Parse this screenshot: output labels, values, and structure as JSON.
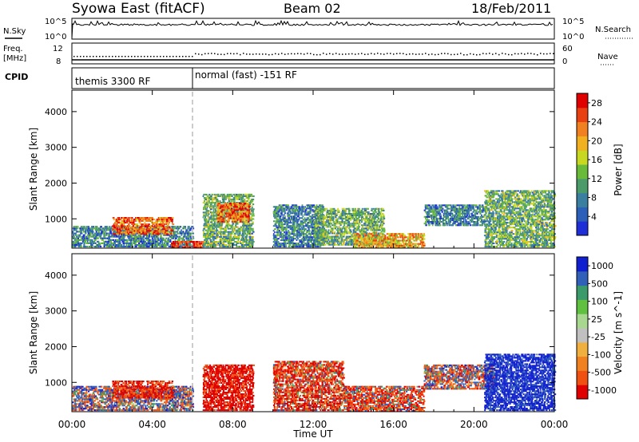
{
  "header": {
    "station": "Syowa East (fitACF)",
    "beam": "Beam 02",
    "date": "18/Feb/2011"
  },
  "top_panels": {
    "nsky": {
      "label": "N.Sky",
      "tick_hi": "10^5",
      "tick_lo": "10^0",
      "right_label": "N.Search",
      "right_tick_hi": "10^5",
      "right_tick_lo": "10^0"
    },
    "freq": {
      "label_1": "Freq.",
      "label_2": "[MHz]",
      "tick_hi": "12",
      "tick_lo": "8",
      "right_label": "Nave",
      "right_tick_hi": "60",
      "right_tick_lo": "0"
    },
    "cpid": {
      "label": "CPID",
      "segments": [
        {
          "name": "themis 3300 RF",
          "start_hour": 0,
          "end_hour": 6.0
        },
        {
          "name": "normal (fast) -151 RF",
          "start_hour": 6.0,
          "end_hour": 24
        }
      ]
    }
  },
  "colors": {
    "grey_marker": "#bbbbbb",
    "power_scale": [
      "#1f2fd8",
      "#2b5fb8",
      "#3a7fa0",
      "#4b9a6a",
      "#6aba3a",
      "#c8d820",
      "#f0b020",
      "#f08020",
      "#e84010",
      "#e00000"
    ],
    "velocity_scale": [
      "#e00000",
      "#f05010",
      "#f08020",
      "#f0b040",
      "#c0c0c0",
      "#a8d890",
      "#60c040",
      "#3a9a6a",
      "#3060b8",
      "#1020d0"
    ]
  },
  "chart_data": [
    {
      "type": "heatmap",
      "title": "",
      "xlabel": "Time UT",
      "ylabel": "Slant Range [km]",
      "xlim": [
        0,
        24
      ],
      "ylim": [
        180,
        4600
      ],
      "x_ticks": [
        "00:00",
        "04:00",
        "08:00",
        "12:00",
        "16:00",
        "20:00",
        "00:00"
      ],
      "y_ticks": [
        "1000",
        "2000",
        "3000",
        "4000"
      ],
      "colorbar": {
        "label": "Power [dB]",
        "ticks": [
          "4",
          "8",
          "12",
          "16",
          "20",
          "24",
          "28"
        ],
        "range": [
          0,
          30
        ]
      },
      "regions": [
        {
          "t0": 0.0,
          "t1": 6.0,
          "r0": 200,
          "r1": 800,
          "value": 8
        },
        {
          "t0": 2.0,
          "t1": 5.0,
          "r0": 550,
          "r1": 1050,
          "value": 24
        },
        {
          "t0": 4.9,
          "t1": 6.5,
          "r0": 180,
          "r1": 380,
          "value": 28
        },
        {
          "t0": 6.5,
          "t1": 9.0,
          "r0": 200,
          "r1": 1700,
          "value": 12
        },
        {
          "t0": 7.2,
          "t1": 8.8,
          "r0": 900,
          "r1": 1450,
          "value": 24
        },
        {
          "t0": 10.0,
          "t1": 12.5,
          "r0": 200,
          "r1": 1400,
          "value": 8
        },
        {
          "t0": 12.0,
          "t1": 15.5,
          "r0": 250,
          "r1": 1300,
          "value": 12
        },
        {
          "t0": 14.0,
          "t1": 17.5,
          "r0": 180,
          "r1": 600,
          "value": 20
        },
        {
          "t0": 17.5,
          "t1": 20.5,
          "r0": 800,
          "r1": 1400,
          "value": 8
        },
        {
          "t0": 20.5,
          "t1": 24.0,
          "r0": 200,
          "r1": 1800,
          "value": 12
        }
      ]
    },
    {
      "type": "heatmap",
      "title": "",
      "xlabel": "Time UT",
      "ylabel": "Slant Range [km]",
      "xlim": [
        0,
        24
      ],
      "ylim": [
        180,
        4600
      ],
      "x_ticks": [
        "00:00",
        "04:00",
        "08:00",
        "12:00",
        "16:00",
        "20:00",
        "00:00"
      ],
      "y_ticks": [
        "1000",
        "2000",
        "3000",
        "4000"
      ],
      "colorbar": {
        "label": "Velocity [m s^-1]",
        "ticks": [
          "1000",
          "500",
          "100",
          "25",
          "-25",
          "-100",
          "-500",
          "-1000"
        ],
        "range": [
          -1000,
          1000
        ]
      },
      "regions": [
        {
          "t0": 0.0,
          "t1": 6.0,
          "r0": 200,
          "r1": 900,
          "value": 50
        },
        {
          "t0": 2.0,
          "t1": 5.0,
          "r0": 550,
          "r1": 1050,
          "value": -300
        },
        {
          "t0": 6.5,
          "t1": 9.0,
          "r0": 200,
          "r1": 1500,
          "value": -400
        },
        {
          "t0": 10.0,
          "t1": 13.5,
          "r0": 200,
          "r1": 1600,
          "value": -200
        },
        {
          "t0": 13.5,
          "t1": 17.5,
          "r0": 180,
          "r1": 900,
          "value": -150
        },
        {
          "t0": 17.5,
          "t1": 21.0,
          "r0": 800,
          "r1": 1500,
          "value": -10
        },
        {
          "t0": 20.5,
          "t1": 24.0,
          "r0": 200,
          "r1": 1800,
          "value": 400
        }
      ]
    }
  ]
}
